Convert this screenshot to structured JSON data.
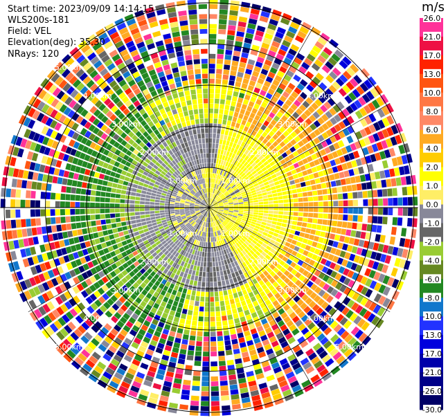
{
  "header": {
    "start_time": "Start time: 2023/09/09 14:14:15",
    "instrument": "WLS200s-181",
    "field": "Field: VEL",
    "elevation": "Elevation(deg): 35.30",
    "nrays": "NRays: 120"
  },
  "colorbar": {
    "unit": "m/s",
    "ticks": [
      "26.0",
      "21.0",
      "17.0",
      "13.0",
      "10.0",
      "8.0",
      "6.0",
      "4.0",
      "2.0",
      "1.0",
      "0.0",
      "-1.0",
      "-2.0",
      "-4.0",
      "-6.0",
      "-8.0",
      "-10.0",
      "-13.0",
      "-17.0",
      "-21.0",
      "-26.0",
      "-30.0"
    ],
    "colors": [
      "#ff3399",
      "#ee1144",
      "#ff2200",
      "#ff5511",
      "#ff7744",
      "#ff8866",
      "#ffaa22",
      "#ffcc00",
      "#ffff00",
      "#ffee66",
      "#888899",
      "#666666",
      "#99cc33",
      "#668822",
      "#228822",
      "#1177cc",
      "#2233ff",
      "#0000dd",
      "#0000aa",
      "#000088",
      "#000066"
    ]
  },
  "chart_data": {
    "type": "heatmap",
    "projection": "polar PPI",
    "field": "VEL",
    "units": "m/s",
    "range_rings_km": [
      "1.00km",
      "2.00km",
      "3.00km",
      "4.00km",
      "5.00km"
    ],
    "ring_label_ne": [
      "1.00km",
      "2.00km",
      "3.00km",
      "4.00km"
    ],
    "ring_label_nw": [
      "1.00km",
      "2.00km",
      "3.00km",
      "4.00km",
      "5.00km"
    ],
    "ring_label_sw": [
      "1.00km",
      "2.00km",
      "3.00km",
      "4.00km",
      "5.00km"
    ],
    "ring_label_se": [
      "1.00km",
      "2.00km",
      "3.00km",
      "4.00km",
      "5.00km"
    ],
    "max_range_km": 5.2,
    "n_rays": 120,
    "inner_pattern": {
      "positive_sector_center_deg": 80,
      "negative_sector_center_deg": 260,
      "near_zero_band": "grey ring between 1 and 2 km"
    }
  }
}
